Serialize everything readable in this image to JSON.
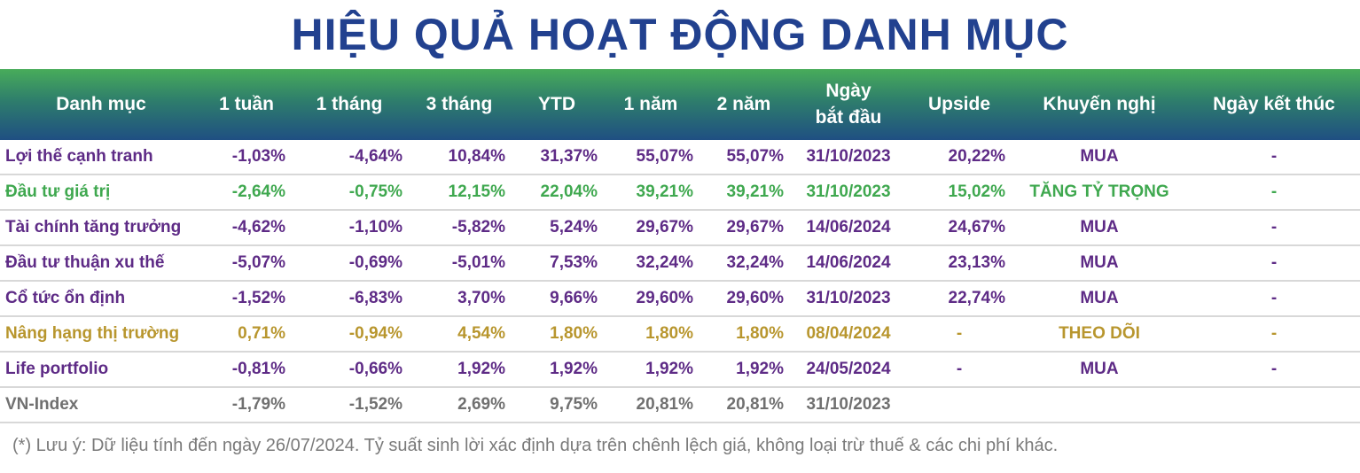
{
  "title": "HIỆU QUẢ HOẠT ĐỘNG DANH MỤC",
  "headers": {
    "category": "Danh mục",
    "w1": "1 tuần",
    "m1": "1 tháng",
    "m3": "3 tháng",
    "ytd": "YTD",
    "y1": "1 năm",
    "y2": "2 năm",
    "start_line1": "Ngày",
    "start_line2": "bắt đầu",
    "upside": "Upside",
    "rec": "Khuyến nghị",
    "end": "Ngày kết thúc"
  },
  "colors": {
    "purple": "#5e2b86",
    "green": "#3fa84f",
    "gold": "#b8962e",
    "gray": "#707070",
    "title": "#22418f"
  },
  "rows": [
    {
      "name": "Lợi thế cạnh tranh",
      "w1": "-1,03%",
      "m1": "-4,64%",
      "m3": "10,84%",
      "ytd": "31,37%",
      "y1": "55,07%",
      "y2": "55,07%",
      "start": "31/10/2023",
      "upside": "20,22%",
      "rec": "MUA",
      "end": "-"
    },
    {
      "name": "Đầu tư giá trị",
      "w1": "-2,64%",
      "m1": "-0,75%",
      "m3": "12,15%",
      "ytd": "22,04%",
      "y1": "39,21%",
      "y2": "39,21%",
      "start": "31/10/2023",
      "upside": "15,02%",
      "rec": "TĂNG TỶ TRỌNG",
      "end": "-"
    },
    {
      "name": "Tài chính tăng trưởng",
      "w1": "-4,62%",
      "m1": "-1,10%",
      "m3": "-5,82%",
      "ytd": "5,24%",
      "y1": "29,67%",
      "y2": "29,67%",
      "start": "14/06/2024",
      "upside": "24,67%",
      "rec": "MUA",
      "end": "-"
    },
    {
      "name": "Đầu tư thuận xu thế",
      "w1": "-5,07%",
      "m1": "-0,69%",
      "m3": "-5,01%",
      "ytd": "7,53%",
      "y1": "32,24%",
      "y2": "32,24%",
      "start": "14/06/2024",
      "upside": "23,13%",
      "rec": "MUA",
      "end": "-"
    },
    {
      "name": "Cổ tức ổn định",
      "w1": "-1,52%",
      "m1": "-6,83%",
      "m3": "3,70%",
      "ytd": "9,66%",
      "y1": "29,60%",
      "y2": "29,60%",
      "start": "31/10/2023",
      "upside": "22,74%",
      "rec": "MUA",
      "end": "-"
    },
    {
      "name": "Nâng hạng thị trường",
      "w1": "0,71%",
      "m1": "-0,94%",
      "m3": "4,54%",
      "ytd": "1,80%",
      "y1": "1,80%",
      "y2": "1,80%",
      "start": "08/04/2024",
      "upside": "-",
      "rec": "THEO DÕI",
      "end": "-"
    },
    {
      "name": "Life portfolio",
      "w1": "-0,81%",
      "m1": "-0,66%",
      "m3": "1,92%",
      "ytd": "1,92%",
      "y1": "1,92%",
      "y2": "1,92%",
      "start": "24/05/2024",
      "upside": "-",
      "rec": "MUA",
      "end": "-"
    },
    {
      "name": "VN-Index",
      "w1": "-1,79%",
      "m1": "-1,52%",
      "m3": "2,69%",
      "ytd": "9,75%",
      "y1": "20,81%",
      "y2": "20,81%",
      "start": "31/10/2023",
      "upside": "",
      "rec": "",
      "end": ""
    }
  ],
  "note": "(*) Lưu ý: Dữ liệu tính đến ngày 26/07/2024. Tỷ suất sinh lời xác định dựa trên chênh lệch giá, không loại trừ thuế & các chi phí khác."
}
